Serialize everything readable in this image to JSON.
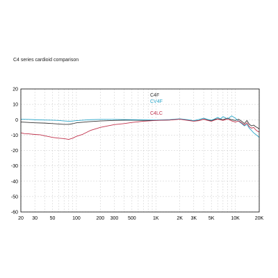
{
  "chart_data": {
    "type": "line",
    "title": "C4 series cardioid comparison",
    "xlabel": "",
    "ylabel": "",
    "x_scale": "log",
    "xlim": [
      20,
      20000
    ],
    "ylim": [
      -60,
      20
    ],
    "grid": true,
    "legend": "inline labels near curves",
    "x_ticks": [
      {
        "value": 20,
        "label": "20"
      },
      {
        "value": 30,
        "label": "30"
      },
      {
        "value": 50,
        "label": "50"
      },
      {
        "value": 100,
        "label": "100"
      },
      {
        "value": 200,
        "label": "200"
      },
      {
        "value": 300,
        "label": "300"
      },
      {
        "value": 500,
        "label": "500"
      },
      {
        "value": 1000,
        "label": "1K"
      },
      {
        "value": 2000,
        "label": "2K"
      },
      {
        "value": 3000,
        "label": "3K"
      },
      {
        "value": 5000,
        "label": "5K"
      },
      {
        "value": 10000,
        "label": "10K"
      },
      {
        "value": 20000,
        "label": "20K"
      }
    ],
    "x_minor_grid": [
      40,
      60,
      70,
      80,
      90,
      400,
      600,
      700,
      800,
      900,
      4000,
      6000,
      7000,
      8000,
      9000
    ],
    "y_ticks": [
      {
        "value": 20,
        "label": "20"
      },
      {
        "value": 10,
        "label": "10"
      },
      {
        "value": 0,
        "label": "0"
      },
      {
        "value": -10,
        "label": "-10"
      },
      {
        "value": -20,
        "label": "-20"
      },
      {
        "value": -30,
        "label": "-30"
      },
      {
        "value": -40,
        "label": "-40"
      },
      {
        "value": -50,
        "label": "-50"
      },
      {
        "value": -60,
        "label": "-60"
      }
    ],
    "series": [
      {
        "name": "C4F",
        "color": "#333333",
        "points": [
          [
            20,
            -1.5
          ],
          [
            25,
            -1.8
          ],
          [
            30,
            -2.0
          ],
          [
            40,
            -2.2
          ],
          [
            50,
            -2.5
          ],
          [
            60,
            -2.8
          ],
          [
            70,
            -3.0
          ],
          [
            80,
            -3.0
          ],
          [
            90,
            -2.6
          ],
          [
            100,
            -2.0
          ],
          [
            130,
            -1.5
          ],
          [
            150,
            -1.2
          ],
          [
            200,
            -0.8
          ],
          [
            300,
            -0.5
          ],
          [
            400,
            -0.3
          ],
          [
            500,
            -0.3
          ],
          [
            700,
            -0.4
          ],
          [
            1000,
            -0.4
          ],
          [
            1500,
            -0.2
          ],
          [
            2000,
            0.5
          ],
          [
            2500,
            -0.3
          ],
          [
            3000,
            -0.8
          ],
          [
            3500,
            -0.5
          ],
          [
            4000,
            0.4
          ],
          [
            4500,
            -0.3
          ],
          [
            5000,
            -0.6
          ],
          [
            5500,
            0.2
          ],
          [
            6000,
            0.6
          ],
          [
            7000,
            0.1
          ],
          [
            8000,
            1.0
          ],
          [
            9000,
            0.0
          ],
          [
            10000,
            -0.5
          ],
          [
            11000,
            0.3
          ],
          [
            12000,
            -1.0
          ],
          [
            13000,
            -2.5
          ],
          [
            14000,
            -0.5
          ],
          [
            15000,
            -3.0
          ],
          [
            16000,
            -4.0
          ],
          [
            17000,
            -3.5
          ],
          [
            18000,
            -4.5
          ],
          [
            19000,
            -5.2
          ],
          [
            20000,
            -6.0
          ]
        ]
      },
      {
        "name": "CV4F",
        "color": "#2aa6c9",
        "points": [
          [
            20,
            0.3
          ],
          [
            25,
            0.2
          ],
          [
            30,
            0.0
          ],
          [
            40,
            -0.2
          ],
          [
            50,
            -0.3
          ],
          [
            60,
            -0.5
          ],
          [
            70,
            -0.8
          ],
          [
            80,
            -1.0
          ],
          [
            90,
            -0.9
          ],
          [
            100,
            -0.6
          ],
          [
            130,
            -0.2
          ],
          [
            150,
            0.0
          ],
          [
            200,
            0.2
          ],
          [
            300,
            0.2
          ],
          [
            400,
            0.1
          ],
          [
            500,
            0.0
          ],
          [
            700,
            -0.1
          ],
          [
            1000,
            -0.2
          ],
          [
            1500,
            0.1
          ],
          [
            2000,
            0.6
          ],
          [
            2500,
            0.0
          ],
          [
            3000,
            -0.6
          ],
          [
            3500,
            0.2
          ],
          [
            4000,
            1.0
          ],
          [
            4500,
            0.2
          ],
          [
            5000,
            -0.3
          ],
          [
            5500,
            0.5
          ],
          [
            6000,
            1.5
          ],
          [
            6500,
            0.5
          ],
          [
            7000,
            2.0
          ],
          [
            8000,
            0.5
          ],
          [
            9000,
            2.5
          ],
          [
            10000,
            1.0
          ],
          [
            11000,
            -1.0
          ],
          [
            12000,
            -2.5
          ],
          [
            13000,
            -4.0
          ],
          [
            14000,
            -3.0
          ],
          [
            15000,
            -5.5
          ],
          [
            16000,
            -7.0
          ],
          [
            17000,
            -8.5
          ],
          [
            18000,
            -9.5
          ],
          [
            19000,
            -10.5
          ],
          [
            20000,
            -11.5
          ]
        ]
      },
      {
        "name": "C4LC",
        "color": "#c0304a",
        "points": [
          [
            20,
            -8.5
          ],
          [
            22,
            -9.0
          ],
          [
            25,
            -9.2
          ],
          [
            30,
            -9.6
          ],
          [
            35,
            -9.8
          ],
          [
            40,
            -10.5
          ],
          [
            45,
            -11.0
          ],
          [
            50,
            -11.5
          ],
          [
            60,
            -12.0
          ],
          [
            70,
            -12.3
          ],
          [
            80,
            -12.8
          ],
          [
            90,
            -12.0
          ],
          [
            100,
            -10.8
          ],
          [
            120,
            -9.5
          ],
          [
            150,
            -7.0
          ],
          [
            200,
            -5.0
          ],
          [
            250,
            -4.0
          ],
          [
            300,
            -3.2
          ],
          [
            400,
            -2.5
          ],
          [
            500,
            -1.8
          ],
          [
            700,
            -1.0
          ],
          [
            1000,
            -0.5
          ],
          [
            1500,
            -0.2
          ],
          [
            2000,
            0.3
          ],
          [
            2500,
            -0.4
          ],
          [
            3000,
            -1.0
          ],
          [
            3500,
            -0.6
          ],
          [
            4000,
            0.3
          ],
          [
            4500,
            -0.5
          ],
          [
            5000,
            -1.0
          ],
          [
            5500,
            -0.2
          ],
          [
            6000,
            0.4
          ],
          [
            7000,
            -0.5
          ],
          [
            8000,
            0.5
          ],
          [
            9000,
            -0.8
          ],
          [
            10000,
            -1.5
          ],
          [
            11000,
            -0.8
          ],
          [
            12000,
            -2.0
          ],
          [
            13000,
            -3.5
          ],
          [
            14000,
            -2.0
          ],
          [
            15000,
            -4.5
          ],
          [
            16000,
            -5.5
          ],
          [
            17000,
            -5.0
          ],
          [
            18000,
            -6.5
          ],
          [
            19000,
            -7.5
          ],
          [
            20000,
            -8.0
          ]
        ]
      }
    ]
  }
}
